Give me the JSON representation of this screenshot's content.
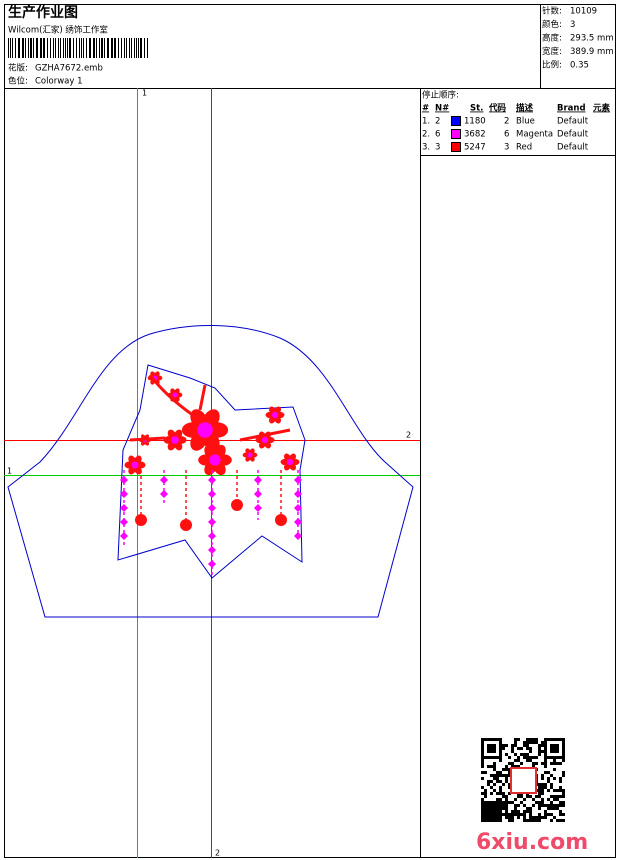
{
  "header": {
    "title": "生产作业图",
    "company": "Wilcom(汇家) 绣饰工作室",
    "design_label": "花版:",
    "design": "GZHA7672.emb",
    "colorway_label": "色位:",
    "colorway": "Colorway 1"
  },
  "stats": [
    {
      "label": "针数:",
      "value": "10109"
    },
    {
      "label": "颜色:",
      "value": "3"
    },
    {
      "label": "高度:",
      "value": "293.5 mm"
    },
    {
      "label": "宽度:",
      "value": "389.9 mm"
    },
    {
      "label": "比例:",
      "value": "0.35"
    }
  ],
  "stop_sequence": {
    "title": "停止顺序:",
    "columns": [
      "#",
      "N#",
      "St.",
      "代码",
      "描述",
      "Brand",
      "元素"
    ],
    "rows": [
      {
        "index": "1.",
        "needle": "2",
        "color": "#0000ff",
        "stitches": "1180",
        "code": "2",
        "description": "Blue",
        "brand": "Default"
      },
      {
        "index": "2.",
        "needle": "6",
        "color": "#ff00ff",
        "stitches": "3682",
        "code": "6",
        "description": "Magenta",
        "brand": "Default"
      },
      {
        "index": "3.",
        "needle": "3",
        "color": "#ff0000",
        "stitches": "5247",
        "code": "3",
        "description": "Red",
        "brand": "Default"
      }
    ]
  },
  "guides": {
    "green_vertical": "1",
    "green_horizontal": "1",
    "red_vertical": "2",
    "red_horizontal": "2"
  },
  "watermark": "6xiu.com"
}
